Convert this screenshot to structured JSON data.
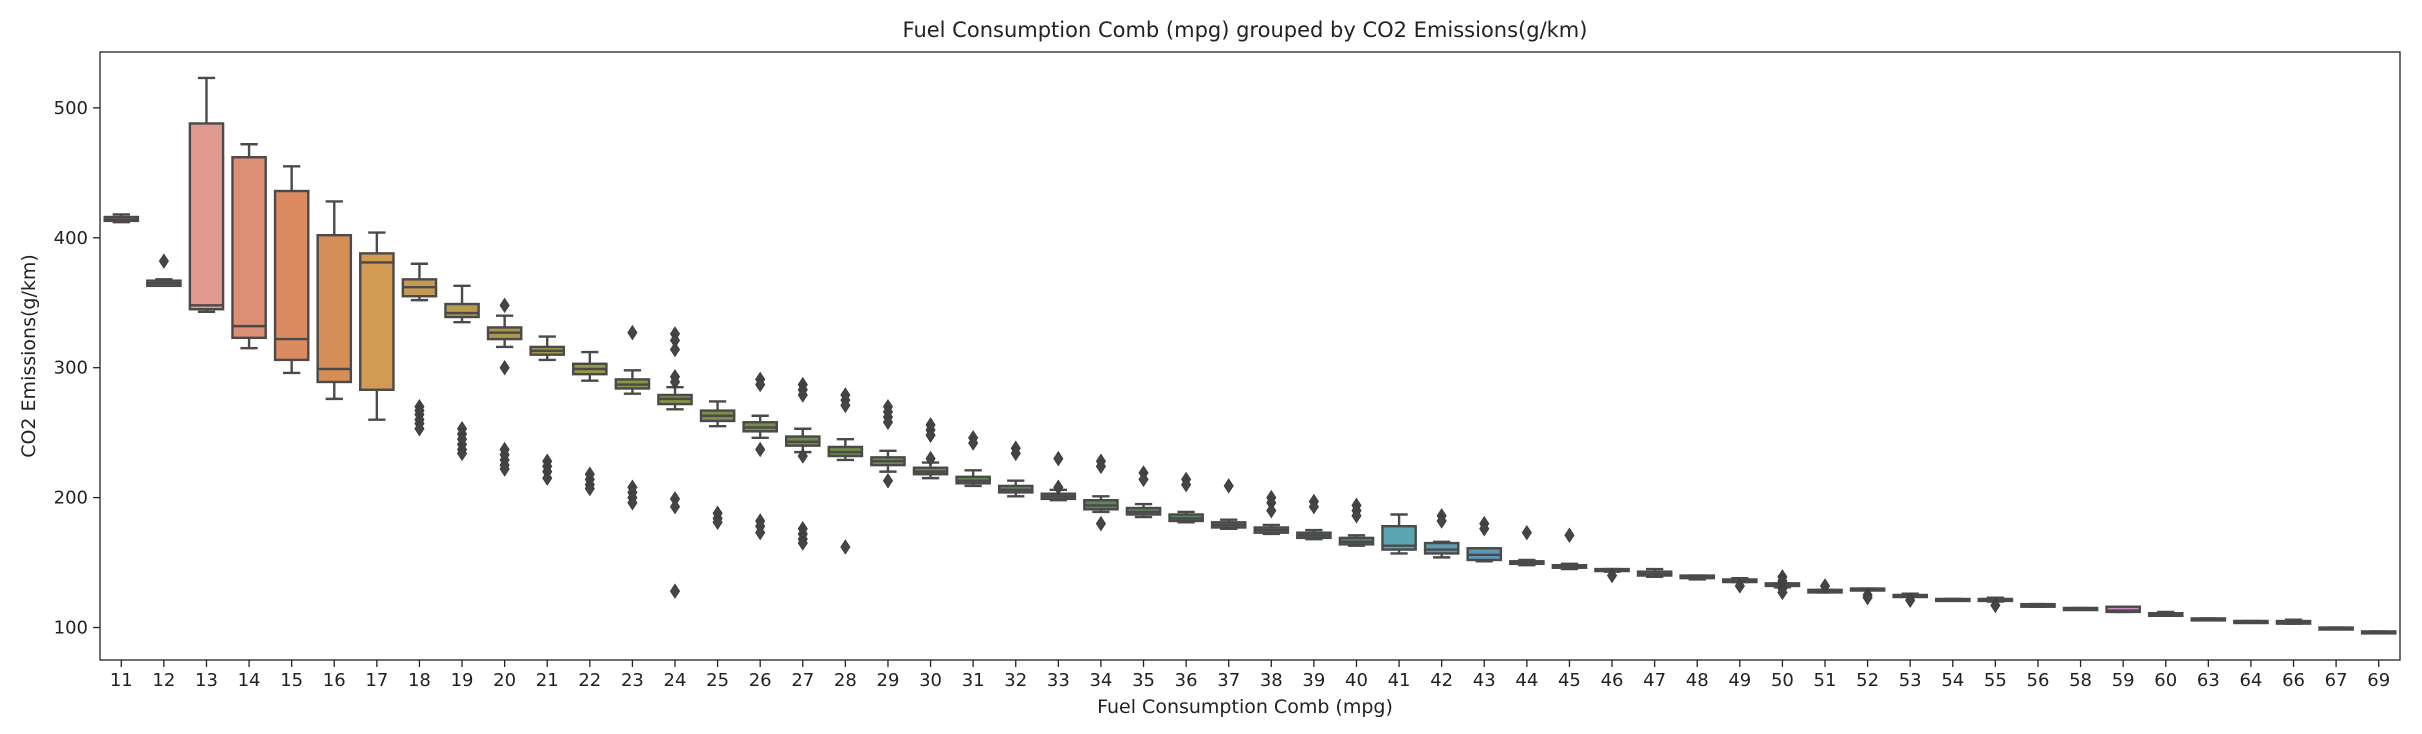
{
  "chart_data": {
    "type": "box",
    "title": "Fuel Consumption Comb (mpg) grouped by CO2 Emissions(g/km)",
    "xlabel": "Fuel Consumption Comb (mpg)",
    "ylabel": "CO2 Emissions(g/km)",
    "ylim": [
      75,
      543
    ],
    "yticks": [
      100,
      200,
      300,
      400,
      500
    ],
    "grid": false,
    "legend": "none",
    "series": [
      {
        "category": "11",
        "min": 412,
        "q1": 413,
        "median": 414,
        "q3": 416,
        "max": 418,
        "outliers": [],
        "color": "#c6706e"
      },
      {
        "category": "12",
        "min": 363,
        "q1": 363,
        "median": 365,
        "q3": 367,
        "max": 368,
        "outliers": [
          382
        ],
        "color": "#d87b82"
      },
      {
        "category": "13",
        "min": 343,
        "q1": 345,
        "median": 348,
        "q3": 488,
        "max": 523,
        "outliers": [],
        "color": "#e09a8f"
      },
      {
        "category": "14",
        "min": 315,
        "q1": 323,
        "median": 332,
        "q3": 462,
        "max": 472,
        "outliers": [],
        "color": "#dc8f74"
      },
      {
        "category": "15",
        "min": 296,
        "q1": 306,
        "median": 322,
        "q3": 436,
        "max": 455,
        "outliers": [],
        "color": "#dc8a60"
      },
      {
        "category": "16",
        "min": 276,
        "q1": 289,
        "median": 299,
        "q3": 402,
        "max": 428,
        "outliers": [],
        "color": "#d68e58"
      },
      {
        "category": "17",
        "min": 260,
        "q1": 283,
        "median": 381,
        "q3": 388,
        "max": 404,
        "outliers": [],
        "color": "#d39a54"
      },
      {
        "category": "18",
        "min": 352,
        "q1": 355,
        "median": 362,
        "q3": 368,
        "max": 380,
        "outliers": [
          270,
          267,
          264,
          260,
          257,
          253
        ],
        "color": "#c59a52"
      },
      {
        "category": "19",
        "min": 335,
        "q1": 339,
        "median": 342,
        "q3": 349,
        "max": 363,
        "outliers": [
          253,
          249,
          245,
          241,
          237,
          234
        ],
        "color": "#b79a4e"
      },
      {
        "category": "20",
        "min": 316,
        "q1": 322,
        "median": 327,
        "q3": 331,
        "max": 340,
        "outliers": [
          348,
          300,
          237,
          233,
          229,
          225,
          222
        ],
        "color": "#ab984b"
      },
      {
        "category": "21",
        "min": 306,
        "q1": 310,
        "median": 313,
        "q3": 316,
        "max": 324,
        "outliers": [
          228,
          224,
          220,
          215
        ],
        "color": "#a09848"
      },
      {
        "category": "22",
        "min": 290,
        "q1": 295,
        "median": 299,
        "q3": 303,
        "max": 312,
        "outliers": [
          218,
          214,
          210,
          207
        ],
        "color": "#979846"
      },
      {
        "category": "23",
        "min": 280,
        "q1": 284,
        "median": 287,
        "q3": 291,
        "max": 298,
        "outliers": [
          327,
          208,
          204,
          200,
          196
        ],
        "color": "#8e9544"
      },
      {
        "category": "24",
        "min": 268,
        "q1": 272,
        "median": 276,
        "q3": 279,
        "max": 285,
        "outliers": [
          326,
          321,
          314,
          293,
          289,
          199,
          193,
          128
        ],
        "color": "#859346"
      },
      {
        "category": "25",
        "min": 255,
        "q1": 259,
        "median": 263,
        "q3": 267,
        "max": 274,
        "outliers": [
          188,
          184,
          181
        ],
        "color": "#7d9149"
      },
      {
        "category": "26",
        "min": 246,
        "q1": 251,
        "median": 254,
        "q3": 258,
        "max": 263,
        "outliers": [
          291,
          287,
          237,
          182,
          178,
          173
        ],
        "color": "#788f4a"
      },
      {
        "category": "27",
        "min": 235,
        "q1": 240,
        "median": 243,
        "q3": 247,
        "max": 253,
        "outliers": [
          287,
          283,
          279,
          232,
          176,
          172,
          168,
          165
        ],
        "color": "#758d4c"
      },
      {
        "category": "28",
        "min": 229,
        "q1": 232,
        "median": 235,
        "q3": 239,
        "max": 245,
        "outliers": [
          279,
          275,
          271,
          162
        ],
        "color": "#718c4e"
      },
      {
        "category": "29",
        "min": 220,
        "q1": 225,
        "median": 228,
        "q3": 231,
        "max": 236,
        "outliers": [
          270,
          266,
          262,
          258,
          213
        ],
        "color": "#6e8a50"
      },
      {
        "category": "30",
        "min": 215,
        "q1": 218,
        "median": 220,
        "q3": 223,
        "max": 227,
        "outliers": [
          256,
          252,
          248,
          230
        ],
        "color": "#6b8952"
      },
      {
        "category": "31",
        "min": 209,
        "q1": 211,
        "median": 213,
        "q3": 216,
        "max": 221,
        "outliers": [
          246,
          242
        ],
        "color": "#688854"
      },
      {
        "category": "32",
        "min": 201,
        "q1": 204,
        "median": 206,
        "q3": 209,
        "max": 213,
        "outliers": [
          238,
          234
        ],
        "color": "#658756"
      },
      {
        "category": "33",
        "min": 198,
        "q1": 199,
        "median": 201,
        "q3": 203,
        "max": 206,
        "outliers": [
          230,
          208
        ],
        "color": "#628658"
      },
      {
        "category": "34",
        "min": 189,
        "q1": 191,
        "median": 194,
        "q3": 198,
        "max": 201,
        "outliers": [
          228,
          224,
          180
        ],
        "color": "#5f865a"
      },
      {
        "category": "35",
        "min": 185,
        "q1": 187,
        "median": 189,
        "q3": 192,
        "max": 195,
        "outliers": [
          219,
          214
        ],
        "color": "#5c865c"
      },
      {
        "category": "36",
        "min": 181,
        "q1": 182,
        "median": 184,
        "q3": 187,
        "max": 189,
        "outliers": [
          214,
          210
        ],
        "color": "#59855f"
      },
      {
        "category": "37",
        "min": 176,
        "q1": 177,
        "median": 179,
        "q3": 181,
        "max": 183,
        "outliers": [
          209
        ],
        "color": "#578563"
      },
      {
        "category": "38",
        "min": 172,
        "q1": 173,
        "median": 175,
        "q3": 177,
        "max": 179,
        "outliers": [
          200,
          196,
          190
        ],
        "color": "#558567"
      },
      {
        "category": "39",
        "min": 168,
        "q1": 169,
        "median": 171,
        "q3": 173,
        "max": 175,
        "outliers": [
          197,
          193
        ],
        "color": "#53856c"
      },
      {
        "category": "40",
        "min": 163,
        "q1": 164,
        "median": 166,
        "q3": 169,
        "max": 171,
        "outliers": [
          194,
          190,
          186
        ],
        "color": "#518672"
      },
      {
        "category": "41",
        "min": 157,
        "q1": 160,
        "median": 163,
        "q3": 178,
        "max": 187,
        "outliers": [],
        "color": "#5aa7b3"
      },
      {
        "category": "42",
        "min": 154,
        "q1": 157,
        "median": 160,
        "q3": 165,
        "max": 166,
        "outliers": [
          186,
          182
        ],
        "color": "#5c9cb2"
      },
      {
        "category": "43",
        "min": 151,
        "q1": 152,
        "median": 156,
        "q3": 161,
        "max": 161,
        "outliers": [
          180,
          176
        ],
        "color": "#5f98b6"
      },
      {
        "category": "44",
        "min": 148,
        "q1": 149,
        "median": 150,
        "q3": 151,
        "max": 152,
        "outliers": [
          173
        ],
        "color": "#6296b8"
      },
      {
        "category": "45",
        "min": 145,
        "q1": 146,
        "median": 147,
        "q3": 148,
        "max": 149,
        "outliers": [
          171
        ],
        "color": "#6594ba"
      },
      {
        "category": "46",
        "min": 143,
        "q1": 144,
        "median": 144,
        "q3": 145,
        "max": 145,
        "outliers": [
          140
        ],
        "color": "#6892bc"
      },
      {
        "category": "47",
        "min": 139,
        "q1": 140,
        "median": 141,
        "q3": 143,
        "max": 145,
        "outliers": [],
        "color": "#6b90be"
      },
      {
        "category": "48",
        "min": 137,
        "q1": 138,
        "median": 139,
        "q3": 140,
        "max": 140,
        "outliers": [],
        "color": "#6e8ec0"
      },
      {
        "category": "49",
        "min": 135,
        "q1": 135,
        "median": 136,
        "q3": 137,
        "max": 138,
        "outliers": [
          132
        ],
        "color": "#718cc2"
      },
      {
        "category": "50",
        "min": 131,
        "q1": 132,
        "median": 133,
        "q3": 134,
        "max": 134,
        "outliers": [
          139,
          136,
          130,
          127
        ],
        "color": "#748ac4"
      },
      {
        "category": "51",
        "min": 127,
        "q1": 127,
        "median": 128,
        "q3": 129,
        "max": 129,
        "outliers": [
          132
        ],
        "color": "#7788c6"
      },
      {
        "category": "52",
        "min": 129,
        "q1": 129,
        "median": 129,
        "q3": 130,
        "max": 130,
        "outliers": [
          125,
          123
        ],
        "color": "#7a86c8"
      },
      {
        "category": "53",
        "min": 124,
        "q1": 124,
        "median": 125,
        "q3": 125,
        "max": 126,
        "outliers": [
          121
        ],
        "color": "#7d84ca"
      },
      {
        "category": "54",
        "min": 121,
        "q1": 121,
        "median": 121,
        "q3": 122,
        "max": 122,
        "outliers": [],
        "color": "#8082cc"
      },
      {
        "category": "55",
        "min": 120,
        "q1": 121,
        "median": 121,
        "q3": 122,
        "max": 123,
        "outliers": [
          117
        ],
        "color": "#8580cc"
      },
      {
        "category": "56",
        "min": 116,
        "q1": 116,
        "median": 117,
        "q3": 118,
        "max": 118,
        "outliers": [],
        "color": "#8a7ecb"
      },
      {
        "category": "58",
        "min": 114,
        "q1": 114,
        "median": 115,
        "q3": 115,
        "max": 115,
        "outliers": [],
        "color": "#9a7cc8"
      },
      {
        "category": "59",
        "min": 112,
        "q1": 112,
        "median": 113,
        "q3": 116,
        "max": 116,
        "outliers": [],
        "color": "#c98ac6"
      },
      {
        "category": "60",
        "min": 109,
        "q1": 109,
        "median": 110,
        "q3": 111,
        "max": 112,
        "outliers": [],
        "color": "#cb88bd"
      },
      {
        "category": "63",
        "min": 106,
        "q1": 106,
        "median": 106,
        "q3": 107,
        "max": 107,
        "outliers": [],
        "color": "#cd86b4"
      },
      {
        "category": "64",
        "min": 104,
        "q1": 104,
        "median": 105,
        "q3": 105,
        "max": 105,
        "outliers": [],
        "color": "#cf84ab"
      },
      {
        "category": "66",
        "min": 103,
        "q1": 103,
        "median": 104,
        "q3": 105,
        "max": 106,
        "outliers": [],
        "color": "#d182a2"
      },
      {
        "category": "67",
        "min": 99,
        "q1": 99,
        "median": 99,
        "q3": 100,
        "max": 100,
        "outliers": [],
        "color": "#d38099"
      },
      {
        "category": "69",
        "min": 96,
        "q1": 96,
        "median": 96,
        "q3": 97,
        "max": 97,
        "outliers": [],
        "color": "#d57e90"
      }
    ]
  }
}
